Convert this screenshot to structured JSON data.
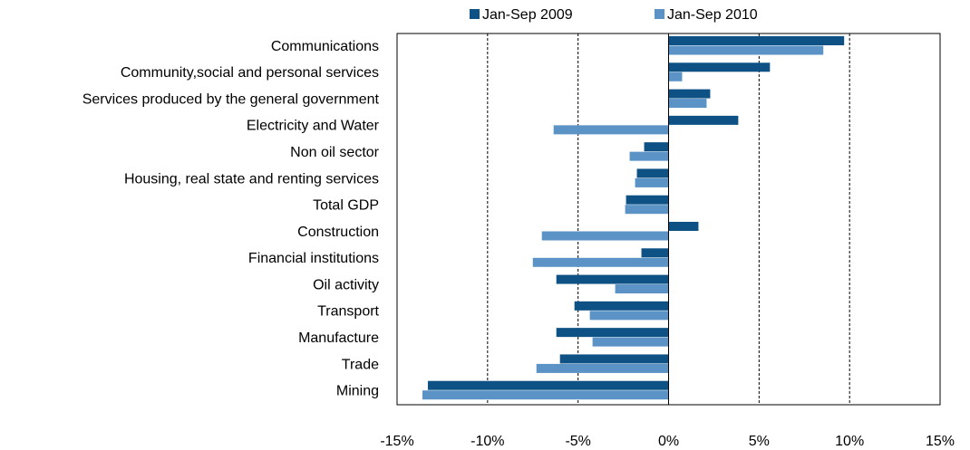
{
  "chart_data": {
    "type": "hbar",
    "categories": [
      "Communications",
      "Community,social and personal services",
      "Services produced by the general government",
      "Electricity and Water",
      "Non oil sector",
      "Housing, real state and renting services",
      "Total GDP",
      "Construction",
      "Financial institutions",
      "Oil activity",
      "Transport",
      "Manufacture",
      "Trade",
      "Mining"
    ],
    "series": [
      {
        "name": "Jan-Sep 2009",
        "color": "#0e5285",
        "values": [
          9.7,
          5.6,
          2.3,
          3.85,
          -1.35,
          -1.75,
          -2.35,
          1.65,
          -1.5,
          -6.2,
          -5.2,
          -6.2,
          -6.0,
          -13.3
        ]
      },
      {
        "name": "Jan-Sep 2010",
        "color": "#5b93c6",
        "values": [
          8.55,
          0.75,
          2.1,
          -6.35,
          -2.15,
          -1.85,
          -2.4,
          -7.0,
          -7.5,
          -2.95,
          -4.35,
          -4.2,
          -7.3,
          -13.6
        ]
      }
    ],
    "xlim": [
      -15,
      15
    ],
    "xticks": [
      {
        "value": -15,
        "label": "-15%"
      },
      {
        "value": -10,
        "label": "-10%"
      },
      {
        "value": -5,
        "label": "-5%"
      },
      {
        "value": 0,
        "label": "0%"
      },
      {
        "value": 5,
        "label": "5%"
      },
      {
        "value": 10,
        "label": "10%"
      },
      {
        "value": 15,
        "label": "15%"
      }
    ],
    "grid": true,
    "legend": "top"
  }
}
